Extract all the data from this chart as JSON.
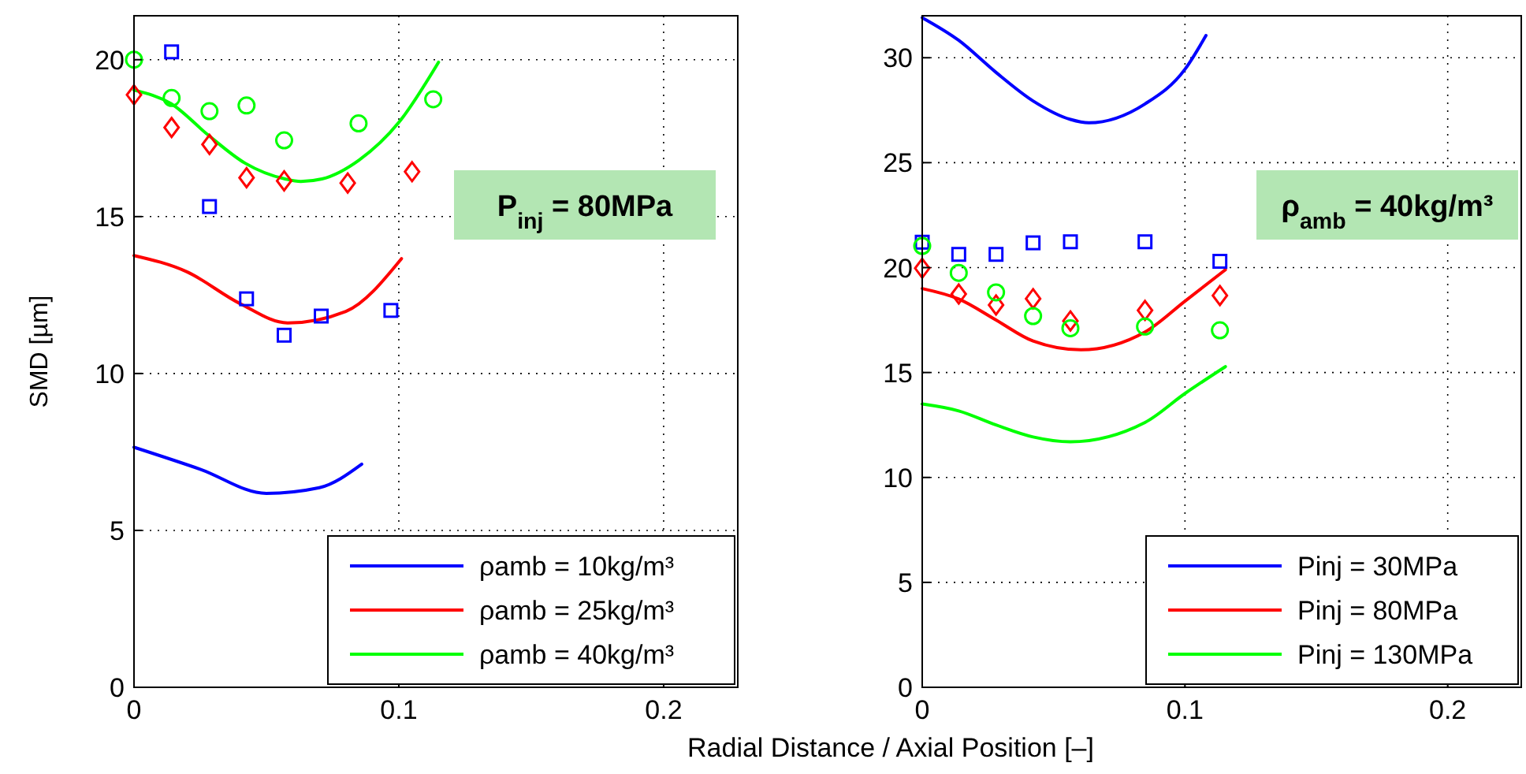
{
  "chart_data": [
    {
      "type": "line",
      "ylabel": "SMD [µm]",
      "xlabel": "Radial Distance / Axial Position [–]",
      "xlim": [
        0,
        0.228
      ],
      "ylim": [
        0,
        21.4
      ],
      "xticks": [
        0,
        0.1,
        0.2
      ],
      "yticks": [
        0,
        5,
        10,
        15,
        20
      ],
      "grid": true,
      "legend": "bottom right",
      "annotations": [
        "P$_{inj}$ = 80MPa"
      ],
      "series": [
        {
          "name": "ρamb = 10kg/m³",
          "color": "#0000ff",
          "line_style": "solid",
          "x": [
            0,
            0.025,
            0.05,
            0.07,
            0.086
          ],
          "values": [
            7.65,
            6.95,
            6.18,
            6.36,
            7.11
          ]
        },
        {
          "name": "ρamb = 25kg/m³",
          "color": "#ff0000",
          "line_style": "solid",
          "x": [
            0,
            0.02,
            0.04,
            0.058,
            0.08,
            0.101
          ],
          "values": [
            13.76,
            13.24,
            12.23,
            11.61,
            11.98,
            13.66
          ]
        },
        {
          "name": "ρamb = 40kg/m³",
          "color": "#00ff00",
          "line_style": "solid",
          "x": [
            0,
            0.014,
            0.028,
            0.042,
            0.057,
            0.063,
            0.071,
            0.085,
            0.1,
            0.115
          ],
          "values": [
            19.03,
            18.6,
            17.6,
            16.7,
            16.2,
            16.12,
            16.2,
            16.8,
            18.0,
            19.92
          ]
        },
        {
          "type": "scatter",
          "marker": "square",
          "color": "#0000ff",
          "x": [
            0.0142,
            0.0285,
            0.0425,
            0.0567,
            0.0707,
            0.097
          ],
          "values": [
            20.25,
            15.32,
            12.38,
            11.22,
            11.83,
            12.01
          ]
        },
        {
          "type": "scatter",
          "marker": "diamond",
          "color": "#ff0000",
          "x": [
            0,
            0.0142,
            0.0285,
            0.0425,
            0.0567,
            0.0807,
            0.105
          ],
          "values": [
            18.88,
            17.84,
            17.3,
            16.24,
            16.14,
            16.07,
            16.43
          ]
        },
        {
          "type": "scatter",
          "marker": "circle",
          "color": "#00ff00",
          "x": [
            0,
            0.0142,
            0.0285,
            0.0425,
            0.0567,
            0.0848,
            0.113
          ],
          "values": [
            20.0,
            18.78,
            18.36,
            18.54,
            17.43,
            17.97,
            18.74
          ]
        }
      ]
    },
    {
      "type": "line",
      "xlim": [
        0,
        0.228
      ],
      "ylim": [
        0,
        32
      ],
      "xticks": [
        0,
        0.1,
        0.2
      ],
      "yticks": [
        0,
        5,
        10,
        15,
        20,
        25,
        30
      ],
      "grid": true,
      "legend": "bottom right",
      "annotations": [
        "ρ$_{amb}$ = 40kg/m³"
      ],
      "series": [
        {
          "name": "Pinj = 30MPa",
          "color": "#0000ff",
          "line_style": "solid",
          "x": [
            0,
            0.0139,
            0.0281,
            0.0422,
            0.0564,
            0.0634,
            0.0848,
            0.1,
            0.108
          ],
          "values": [
            31.91,
            30.83,
            29.3,
            27.94,
            27.06,
            26.9,
            27.8,
            29.45,
            31.06
          ]
        },
        {
          "name": "Pinj = 80MPa",
          "color": "#ff0000",
          "line_style": "solid",
          "x": [
            0,
            0.0139,
            0.0281,
            0.0422,
            0.0604,
            0.0848,
            0.1,
            0.1154
          ],
          "values": [
            19.0,
            18.5,
            17.5,
            16.5,
            16.08,
            16.93,
            18.4,
            19.9
          ]
        },
        {
          "name": "Pinj = 130MPa",
          "color": "#00ff00",
          "line_style": "solid",
          "x": [
            0,
            0.0139,
            0.0281,
            0.0422,
            0.0564,
            0.0848,
            0.1,
            0.1154
          ],
          "values": [
            13.5,
            13.17,
            12.5,
            11.93,
            11.7,
            12.62,
            14.0,
            15.28
          ]
        },
        {
          "type": "scatter",
          "marker": "square",
          "color": "#0000ff",
          "x": [
            0,
            0.0139,
            0.0281,
            0.0422,
            0.0564,
            0.0848,
            0.1133
          ],
          "values": [
            21.21,
            20.63,
            20.63,
            21.18,
            21.23,
            21.23,
            20.3
          ]
        },
        {
          "type": "scatter",
          "marker": "diamond",
          "color": "#ff0000",
          "x": [
            0,
            0.0139,
            0.0281,
            0.0422,
            0.0564,
            0.0848,
            0.1133
          ],
          "values": [
            19.97,
            18.74,
            18.22,
            18.52,
            17.46,
            17.96,
            18.67
          ]
        },
        {
          "type": "scatter",
          "marker": "circle",
          "color": "#00ff00",
          "x": [
            0,
            0.0139,
            0.0281,
            0.0422,
            0.0564,
            0.0848,
            0.1133
          ],
          "values": [
            21.03,
            19.75,
            18.82,
            17.69,
            17.11,
            17.19,
            17.01
          ]
        }
      ]
    }
  ]
}
